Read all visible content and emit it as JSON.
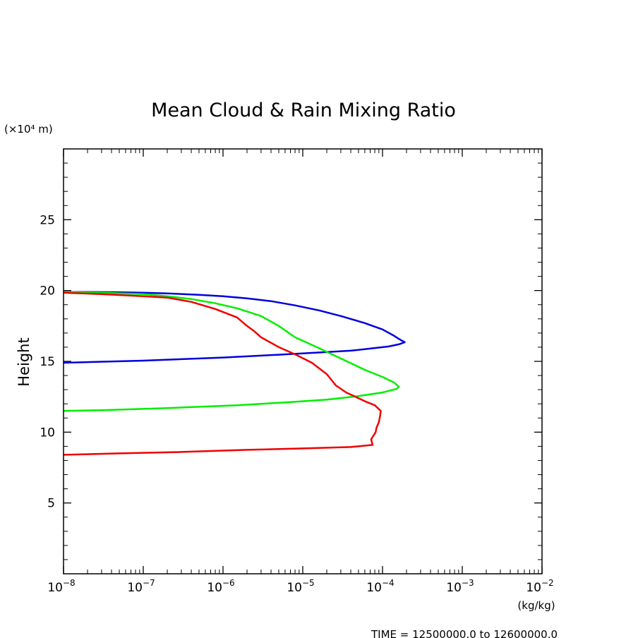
{
  "chart_data": {
    "type": "line",
    "title": "Mean Cloud & Rain Mixing Ratio",
    "xlabel": "(kg/kg)",
    "ylabel": "Height",
    "y_unit_label": "(×10⁴ m)",
    "footer": "TIME = 12500000.0 to 12600000.0",
    "x_scale": "log",
    "xlim": [
      1e-08,
      0.01
    ],
    "ylim": [
      0,
      3
    ],
    "x_ticks": [
      {
        "exp": "−8",
        "value": 1e-08
      },
      {
        "exp": "−7",
        "value": 1e-07
      },
      {
        "exp": "−6",
        "value": 1e-06
      },
      {
        "exp": "−5",
        "value": 1e-05
      },
      {
        "exp": "−4",
        "value": 0.0001
      },
      {
        "exp": "−3",
        "value": 0.001
      },
      {
        "exp": "−2",
        "value": 0.01
      }
    ],
    "y_ticks": [
      {
        "label": "5",
        "value": 0.5
      },
      {
        "label": "10",
        "value": 1.0
      },
      {
        "label": "15",
        "value": 1.5
      },
      {
        "label": "20",
        "value": 2.0
      },
      {
        "label": "25",
        "value": 2.5
      }
    ],
    "series": [
      {
        "color": "#0000dd",
        "points": [
          [
            1e-08,
            1.99
          ],
          [
            2e-08,
            1.99
          ],
          [
            5e-08,
            1.988
          ],
          [
            1e-07,
            1.985
          ],
          [
            2e-07,
            1.98
          ],
          [
            5e-07,
            1.97
          ],
          [
            1e-06,
            1.96
          ],
          [
            2e-06,
            1.945
          ],
          [
            4e-06,
            1.925
          ],
          [
            8e-06,
            1.895
          ],
          [
            1.6e-05,
            1.86
          ],
          [
            3e-05,
            1.82
          ],
          [
            6e-05,
            1.77
          ],
          [
            0.0001,
            1.725
          ],
          [
            0.00014,
            1.68
          ],
          [
            0.00017,
            1.65
          ],
          [
            0.00019,
            1.635
          ],
          [
            0.00016,
            1.62
          ],
          [
            0.00012,
            1.605
          ],
          [
            7e-05,
            1.59
          ],
          [
            4e-05,
            1.575
          ],
          [
            1.5e-05,
            1.562
          ],
          [
            5e-06,
            1.547
          ],
          [
            1e-06,
            1.527
          ],
          [
            1e-07,
            1.505
          ],
          [
            1e-08,
            1.49
          ]
        ]
      },
      {
        "color": "#00ee00",
        "points": [
          [
            1e-08,
            1.99
          ],
          [
            3e-08,
            1.985
          ],
          [
            1e-07,
            1.975
          ],
          [
            2e-07,
            1.96
          ],
          [
            4e-07,
            1.94
          ],
          [
            8e-07,
            1.91
          ],
          [
            1.5e-06,
            1.875
          ],
          [
            3e-06,
            1.82
          ],
          [
            5e-06,
            1.75
          ],
          [
            8e-06,
            1.67
          ],
          [
            1.5e-05,
            1.6
          ],
          [
            3e-05,
            1.52
          ],
          [
            6e-05,
            1.44
          ],
          [
            0.0001,
            1.39
          ],
          [
            0.00014,
            1.35
          ],
          [
            0.00016,
            1.32
          ],
          [
            0.00015,
            1.305
          ],
          [
            0.0001,
            1.28
          ],
          [
            5e-05,
            1.255
          ],
          [
            2e-05,
            1.23
          ],
          [
            6e-06,
            1.21
          ],
          [
            1.5e-06,
            1.19
          ],
          [
            2e-07,
            1.17
          ],
          [
            3e-08,
            1.155
          ],
          [
            1e-08,
            1.15
          ]
        ]
      },
      {
        "color": "#ee0000",
        "points": [
          [
            1e-08,
            1.985
          ],
          [
            3e-08,
            1.975
          ],
          [
            1e-07,
            1.96
          ],
          [
            2e-07,
            1.95
          ],
          [
            4e-07,
            1.92
          ],
          [
            8e-07,
            1.87
          ],
          [
            1.5e-06,
            1.81
          ],
          [
            2e-06,
            1.75
          ],
          [
            2.5e-06,
            1.71
          ],
          [
            3e-06,
            1.67
          ],
          [
            5e-06,
            1.6
          ],
          [
            8e-06,
            1.55
          ],
          [
            1.3e-05,
            1.49
          ],
          [
            2e-05,
            1.41
          ],
          [
            2.6e-05,
            1.33
          ],
          [
            3.5e-05,
            1.28
          ],
          [
            5e-05,
            1.24
          ],
          [
            6.5e-05,
            1.21
          ],
          [
            8e-05,
            1.19
          ],
          [
            9.5e-05,
            1.15
          ],
          [
            9.3e-05,
            1.11
          ],
          [
            9e-05,
            1.07
          ],
          [
            8.4e-05,
            1.03
          ],
          [
            8.2e-05,
            1.0
          ],
          [
            7.6e-05,
            0.97
          ],
          [
            7.2e-05,
            0.95
          ],
          [
            7.5e-05,
            0.91
          ],
          [
            4e-05,
            0.895
          ],
          [
            1e-05,
            0.885
          ],
          [
            2e-06,
            0.875
          ],
          [
            3e-07,
            0.86
          ],
          [
            5e-08,
            0.85
          ],
          [
            1e-08,
            0.84
          ]
        ]
      }
    ],
    "grid": false,
    "legend": "none"
  }
}
